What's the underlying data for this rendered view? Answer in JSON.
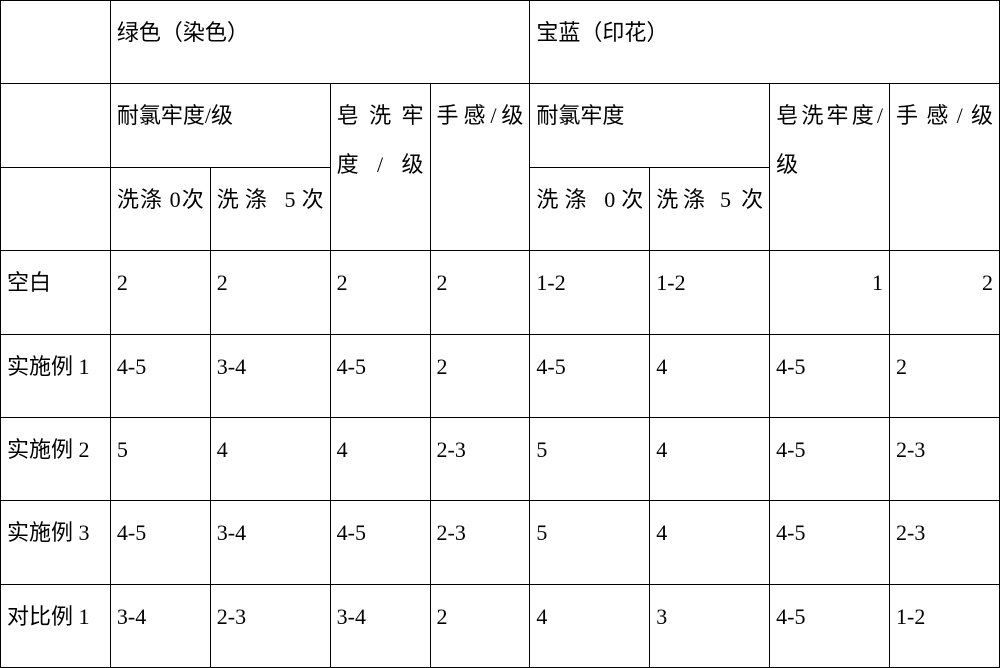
{
  "table": {
    "background_color": "#ffffff",
    "border_color": "#000000",
    "font_family": "SimSun",
    "font_size_pt": 16,
    "header": {
      "top_left_blank": "",
      "group1_title": "绿色（染色）",
      "group2_title": "宝蓝（印花）",
      "g1": {
        "chlorine": "耐氯牢度/级",
        "soap": "皂洗牢度/级",
        "hand": "手感/级",
        "wash0": "洗涤 0次",
        "wash5": "洗涤 5次"
      },
      "g2": {
        "chlorine": "耐氯牢度",
        "soap": "皂洗牢度/级",
        "hand": "手感/级",
        "wash0": "洗涤 0次",
        "wash5": "洗涤 5 次"
      }
    },
    "row_labels": [
      "空白",
      "实施例 1",
      "实施例 2",
      "实施例 3",
      "对比例 1"
    ],
    "rows": [
      [
        "2",
        "2",
        "2",
        "2",
        "1-2",
        "1-2",
        "1",
        "2"
      ],
      [
        "4-5",
        "3-4",
        "4-5",
        "2",
        "4-5",
        "4",
        "4-5",
        "2"
      ],
      [
        "5",
        "4",
        "4",
        "2-3",
        "5",
        "4",
        "4-5",
        "2-3"
      ],
      [
        "4-5",
        "3-4",
        "4-5",
        "2-3",
        "5",
        "4",
        "4-5",
        "2-3"
      ],
      [
        "3-4",
        "2-3",
        "3-4",
        "2",
        "4",
        "3",
        "4-5",
        "1-2"
      ]
    ],
    "row0_right_align_cols": [
      6,
      7
    ]
  }
}
